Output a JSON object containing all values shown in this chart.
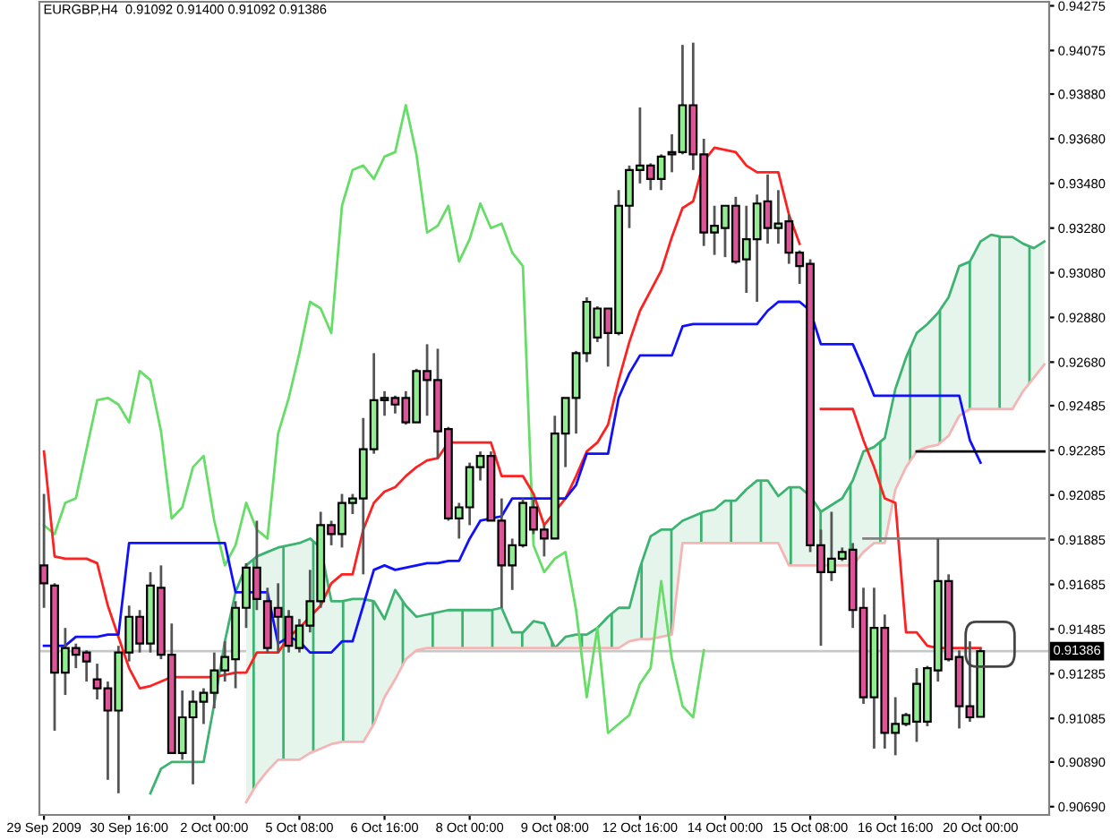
{
  "chart_data": {
    "type": "candlestick",
    "title": "EURGBP,H4  0.91092 0.91400 0.91092 0.91386",
    "categories": [
      "29 Sep 2009",
      null,
      null,
      null,
      null,
      null,
      null,
      null,
      "30 Sep 16:00",
      null,
      null,
      null,
      null,
      null,
      null,
      null,
      "2 Oct 00:00",
      null,
      null,
      null,
      null,
      null,
      null,
      null,
      "5 Oct 08:00",
      null,
      null,
      null,
      null,
      null,
      null,
      null,
      "6 Oct 16:00",
      null,
      null,
      null,
      null,
      null,
      null,
      null,
      "8 Oct 00:00",
      null,
      null,
      null,
      null,
      null,
      null,
      null,
      "9 Oct 08:00",
      null,
      null,
      null,
      null,
      null,
      null,
      null,
      "12 Oct 16:00",
      null,
      null,
      null,
      null,
      null,
      null,
      null,
      "14 Oct 00:00",
      null,
      null,
      null,
      null,
      null,
      null,
      null,
      "15 Oct 08:00",
      null,
      null,
      null,
      null,
      null,
      null,
      null,
      "16 Oct 16:00",
      null,
      null,
      null,
      null,
      null,
      null,
      null,
      "20 Oct 00:00",
      null,
      null,
      null,
      null,
      null,
      null
    ],
    "ohlc": [
      [
        0.9177,
        0.9209,
        0.9158,
        0.9169
      ],
      [
        0.9168,
        0.9169,
        0.9103,
        0.9129
      ],
      [
        0.9129,
        0.9149,
        0.9119,
        0.914
      ],
      [
        0.914,
        0.9142,
        0.9131,
        0.9137
      ],
      [
        0.9138,
        0.9139,
        0.9125,
        0.9134
      ],
      [
        0.9126,
        0.9133,
        0.9117,
        0.9122
      ],
      [
        0.9122,
        0.9125,
        0.9081,
        0.9112
      ],
      [
        0.9112,
        0.9141,
        0.9075,
        0.9138
      ],
      [
        0.9138,
        0.9159,
        0.9134,
        0.9154
      ],
      [
        0.9154,
        0.9157,
        0.9138,
        0.9142
      ],
      [
        0.9142,
        0.9174,
        0.9138,
        0.9168
      ],
      [
        0.9167,
        0.9177,
        0.9135,
        0.9137
      ],
      [
        0.9137,
        0.9151,
        0.9093,
        0.9093
      ],
      [
        0.9093,
        0.9121,
        0.909,
        0.9109
      ],
      [
        0.9109,
        0.9121,
        0.9079,
        0.9116
      ],
      [
        0.9116,
        0.9122,
        0.9106,
        0.912
      ],
      [
        0.912,
        0.9138,
        0.9113,
        0.913
      ],
      [
        0.913,
        0.9143,
        0.9125,
        0.9136
      ],
      [
        0.9135,
        0.9161,
        0.9122,
        0.9158
      ],
      [
        0.9158,
        0.9178,
        0.9149,
        0.9176
      ],
      [
        0.9176,
        0.9197,
        0.9157,
        0.9162
      ],
      [
        0.9161,
        0.9167,
        0.9138,
        0.914
      ],
      [
        0.9158,
        0.9169,
        0.9138,
        0.9154
      ],
      [
        0.9154,
        0.9157,
        0.9138,
        0.9141
      ],
      [
        0.914,
        0.9153,
        0.9138,
        0.915
      ],
      [
        0.915,
        0.9175,
        0.9147,
        0.9161
      ],
      [
        0.9161,
        0.9201,
        0.9158,
        0.9195
      ],
      [
        0.9195,
        0.9197,
        0.9186,
        0.9191
      ],
      [
        0.9191,
        0.9209,
        0.9185,
        0.9205
      ],
      [
        0.9205,
        0.9209,
        0.92,
        0.9207
      ],
      [
        0.9207,
        0.9243,
        0.9173,
        0.9229
      ],
      [
        0.9229,
        0.9272,
        0.9227,
        0.9251
      ],
      [
        0.9251,
        0.9255,
        0.9244,
        0.9252
      ],
      [
        0.9252,
        0.9253,
        0.9245,
        0.9249
      ],
      [
        0.9252,
        0.9255,
        0.924,
        0.9241
      ],
      [
        0.9241,
        0.9265,
        0.9241,
        0.9264
      ],
      [
        0.9264,
        0.9276,
        0.9244,
        0.926
      ],
      [
        0.926,
        0.9274,
        0.9225,
        0.9237
      ],
      [
        0.9238,
        0.9239,
        0.9197,
        0.9198
      ],
      [
        0.9198,
        0.9205,
        0.9189,
        0.9203
      ],
      [
        0.9203,
        0.9223,
        0.9195,
        0.9221
      ],
      [
        0.9221,
        0.9228,
        0.9215,
        0.9226
      ],
      [
        0.9226,
        0.9228,
        0.9197,
        0.9197
      ],
      [
        0.9197,
        0.9207,
        0.9158,
        0.9177
      ],
      [
        0.9177,
        0.9189,
        0.9166,
        0.9186
      ],
      [
        0.9186,
        0.9207,
        0.9185,
        0.9205
      ],
      [
        0.9203,
        0.9207,
        0.9191,
        0.9193
      ],
      [
        0.9193,
        0.9195,
        0.9181,
        0.9189
      ],
      [
        0.9189,
        0.9244,
        0.9189,
        0.9236
      ],
      [
        0.9236,
        0.9252,
        0.9221,
        0.9252
      ],
      [
        0.9252,
        0.9273,
        0.9236,
        0.9272
      ],
      [
        0.9272,
        0.9297,
        0.9268,
        0.9295
      ],
      [
        0.9279,
        0.9293,
        0.9277,
        0.9292
      ],
      [
        0.9292,
        0.9292,
        0.9266,
        0.9281
      ],
      [
        0.9281,
        0.9345,
        0.928,
        0.9338
      ],
      [
        0.9338,
        0.9356,
        0.9328,
        0.9354
      ],
      [
        0.9354,
        0.9382,
        0.9348,
        0.9356
      ],
      [
        0.9356,
        0.9357,
        0.9345,
        0.935
      ],
      [
        0.935,
        0.9361,
        0.9345,
        0.936
      ],
      [
        0.9361,
        0.937,
        0.9353,
        0.9362
      ],
      [
        0.9362,
        0.941,
        0.9361,
        0.9383
      ],
      [
        0.9383,
        0.9411,
        0.9354,
        0.9361
      ],
      [
        0.9361,
        0.9368,
        0.932,
        0.9326
      ],
      [
        0.9326,
        0.9338,
        0.9316,
        0.9329
      ],
      [
        0.9328,
        0.9338,
        0.9315,
        0.9338
      ],
      [
        0.9338,
        0.9342,
        0.9312,
        0.9313
      ],
      [
        0.9314,
        0.9338,
        0.9299,
        0.9323
      ],
      [
        0.9323,
        0.9343,
        0.9295,
        0.9339
      ],
      [
        0.934,
        0.9352,
        0.9321,
        0.9328
      ],
      [
        0.9328,
        0.9345,
        0.9321,
        0.933
      ],
      [
        0.9331,
        0.9334,
        0.9312,
        0.9317
      ],
      [
        0.9317,
        0.9318,
        0.9303,
        0.9311
      ],
      [
        0.9312,
        0.9314,
        0.9183,
        0.9186
      ],
      [
        0.9186,
        0.9193,
        0.9141,
        0.9174
      ],
      [
        0.9174,
        0.9201,
        0.917,
        0.918
      ],
      [
        0.918,
        0.9185,
        0.9179,
        0.9183
      ],
      [
        0.9184,
        0.9187,
        0.9149,
        0.9157
      ],
      [
        0.9158,
        0.9167,
        0.9115,
        0.9118
      ],
      [
        0.9118,
        0.9167,
        0.9095,
        0.9149
      ],
      [
        0.9149,
        0.9155,
        0.9095,
        0.9102
      ],
      [
        0.9102,
        0.9118,
        0.9092,
        0.9106
      ],
      [
        0.9106,
        0.9111,
        0.9105,
        0.911
      ],
      [
        0.9107,
        0.9131,
        0.9098,
        0.9124
      ],
      [
        0.9107,
        0.9132,
        0.9105,
        0.9131
      ],
      [
        0.913,
        0.9189,
        0.9125,
        0.917
      ],
      [
        0.917,
        0.9173,
        0.9134,
        0.9135
      ],
      [
        0.9136,
        0.9139,
        0.9104,
        0.9114
      ],
      [
        0.9114,
        0.9143,
        0.9107,
        0.9109
      ],
      [
        0.91092,
        0.914,
        0.91092,
        0.91386
      ],
      null,
      null,
      null,
      null,
      null,
      null
    ],
    "colors": [
      "#dd5599",
      "#dd5599",
      "#90ee90",
      "#dd5599",
      "#dd5599",
      "#dd5599",
      "#dd5599",
      "#90ee90",
      "#90ee90",
      "#dd5599",
      "#90ee90",
      "#dd5599",
      "#dd5599",
      "#90ee90",
      "#90ee90",
      "#90ee90",
      "#90ee90",
      "#90ee90",
      "#90ee90",
      "#90ee90",
      "#dd5599",
      "#dd5599",
      "#dd5599",
      "#dd5599",
      "#90ee90",
      "#90ee90",
      "#90ee90",
      "#dd5599",
      "#90ee90",
      "#90ee90",
      "#90ee90",
      "#90ee90",
      "#90ee90",
      "#dd5599",
      "#dd5599",
      "#90ee90",
      "#dd5599",
      "#dd5599",
      "#dd5599",
      "#90ee90",
      "#90ee90",
      "#90ee90",
      "#dd5599",
      "#dd5599",
      "#90ee90",
      "#90ee90",
      "#dd5599",
      "#dd5599",
      "#90ee90",
      "#90ee90",
      "#90ee90",
      "#90ee90",
      "#90ee90",
      "#dd5599",
      "#90ee90",
      "#90ee90",
      "#90ee90",
      "#dd5599",
      "#90ee90",
      "#90ee90",
      "#90ee90",
      "#dd5599",
      "#dd5599",
      "#90ee90",
      "#90ee90",
      "#dd5599",
      "#90ee90",
      "#90ee90",
      "#dd5599",
      "#90ee90",
      "#dd5599",
      "#dd5599",
      "#dd5599",
      "#dd5599",
      "#90ee90",
      "#90ee90",
      "#dd5599",
      "#dd5599",
      "#90ee90",
      "#dd5599",
      "#90ee90",
      "#90ee90",
      "#90ee90",
      "#90ee90",
      "#90ee90",
      "#dd5599",
      "#dd5599",
      "#dd5599",
      "#90ee90",
      null,
      null,
      null,
      null,
      null,
      null
    ],
    "series": [
      {
        "type": "line",
        "color": "#3cb371",
        "values": [
          null,
          null,
          null,
          null,
          null,
          null,
          null,
          null,
          null,
          null,
          0.9075,
          0.9086,
          0.9089,
          0.9089,
          0.9089,
          0.9089,
          0.9115,
          0.9143,
          0.9165,
          0.9177,
          0.9181,
          0.9183,
          0.9185,
          0.9186,
          0.9187,
          0.9189,
          0.9185,
          0.9161,
          0.9161,
          0.9162,
          0.9162,
          0.9161,
          0.9153,
          0.9166,
          0.9159,
          0.9154,
          0.9155,
          0.9156,
          0.9157,
          0.9157,
          0.9157,
          0.9157,
          0.9157,
          0.9158,
          0.9147,
          0.9147,
          0.9152,
          0.9151,
          0.914,
          0.9145,
          0.9146,
          0.9146,
          0.9149,
          0.9154,
          0.9158,
          0.9158,
          0.9176,
          0.919,
          0.9193,
          0.9193,
          0.9197,
          0.9199,
          0.9201,
          0.9202,
          0.9206,
          0.9206,
          0.9211,
          0.9215,
          0.9215,
          0.9208,
          0.9212,
          0.9212,
          0.9208,
          0.9201,
          0.9204,
          0.9207,
          0.9215,
          0.9228,
          0.923,
          0.9234,
          0.9256,
          0.927,
          0.9281,
          0.9285,
          0.929,
          0.9297,
          0.9311,
          0.9313,
          0.9322,
          0.9325,
          0.9324,
          0.9324,
          0.9321,
          0.9319,
          0.9322
        ],
        "upper": [
          null,
          null,
          null,
          null,
          null,
          null,
          null,
          null,
          null,
          null,
          null,
          null,
          null,
          null,
          null,
          null,
          null,
          null,
          null,
          0.9177,
          0.9181,
          0.9183,
          0.9185,
          0.9186,
          0.9187,
          0.9189,
          0.9185,
          0.9161,
          0.9161,
          0.9162,
          0.9162,
          0.9161,
          0.9153,
          0.9166,
          0.9159,
          0.9154,
          0.9155,
          0.9156,
          0.9157,
          0.9157,
          0.9157,
          0.9157,
          0.9157,
          0.9158,
          0.9147,
          0.9147,
          0.9152,
          0.9151,
          0.914,
          0.9145,
          0.9146,
          0.9146,
          0.9149,
          0.9154,
          0.9158,
          0.9158,
          0.9176,
          0.919,
          0.9193,
          0.9193,
          0.9197,
          0.9199,
          0.9201,
          0.9202,
          0.9206,
          0.9206,
          0.9211,
          0.9215,
          0.9215,
          0.9208,
          0.9212,
          0.9212,
          0.9208,
          0.9201,
          0.9204,
          0.9207,
          0.9215,
          0.9228,
          0.923,
          0.9234,
          0.9256,
          0.927,
          0.9281,
          0.9285,
          0.929,
          0.9297,
          0.9311,
          0.9313,
          0.9322,
          0.9325,
          0.9324,
          0.9324,
          0.9321,
          0.9319,
          0.9322
        ],
        "lower": [
          null,
          null,
          null,
          null,
          null,
          null,
          null,
          null,
          null,
          null,
          null,
          null,
          null,
          null,
          null,
          null,
          null,
          null,
          null,
          0.9071,
          0.9079,
          0.9085,
          0.909,
          0.909,
          0.909,
          0.9093,
          0.9095,
          0.9097,
          0.9098,
          0.9098,
          0.9098,
          0.9106,
          0.9118,
          0.9126,
          0.9135,
          0.9139,
          0.914,
          0.914,
          0.914,
          0.914,
          0.914,
          0.914,
          0.914,
          0.914,
          0.914,
          0.914,
          0.914,
          0.914,
          0.914,
          0.914,
          0.914,
          0.914,
          0.914,
          0.914,
          0.914,
          0.9143,
          0.9144,
          0.9144,
          0.9145,
          0.9146,
          0.9187,
          0.9187,
          0.9187,
          0.9187,
          0.9187,
          0.9187,
          0.9187,
          0.9187,
          0.9187,
          0.9187,
          0.9177,
          0.9177,
          0.9177,
          0.9177,
          0.9177,
          0.9177,
          0.9177,
          0.9183,
          0.9187,
          0.9187,
          0.9211,
          0.9221,
          0.9228,
          0.923,
          0.9231,
          0.9235,
          0.9244,
          0.9247,
          0.9247,
          0.9247,
          0.9247,
          0.9247,
          0.9255,
          0.9261,
          0.9267
        ]
      },
      {
        "type": "line",
        "color": "#f5b5b5",
        "values": [
          null,
          null,
          null,
          null,
          null,
          null,
          null,
          null,
          null,
          null,
          null,
          null,
          null,
          null,
          null,
          null,
          null,
          null,
          null,
          0.9071,
          0.9079,
          0.9085,
          0.909,
          0.909,
          0.909,
          0.9093,
          0.9095,
          0.9097,
          0.9098,
          0.9098,
          0.9098,
          0.9106,
          0.9118,
          0.9126,
          0.9135,
          0.9139,
          0.914,
          0.914,
          0.914,
          0.914,
          0.914,
          0.914,
          0.914,
          0.914,
          0.914,
          0.914,
          0.914,
          0.914,
          0.914,
          0.914,
          0.914,
          0.914,
          0.914,
          0.914,
          0.914,
          0.9143,
          0.9144,
          0.9144,
          0.9145,
          0.9146,
          0.9187,
          0.9187,
          0.9187,
          0.9187,
          0.9187,
          0.9187,
          0.9187,
          0.9187,
          0.9187,
          0.9187,
          0.9177,
          0.9177,
          0.9177,
          0.9177,
          0.9177,
          0.9177,
          0.9177,
          0.9183,
          0.9187,
          0.9187,
          0.9211,
          0.9221,
          0.9228,
          0.923,
          0.9231,
          0.9235,
          0.9244,
          0.9247,
          0.9247,
          0.9247,
          0.9247,
          0.9247,
          0.9255,
          0.9261,
          0.9267
        ]
      },
      {
        "type": "line",
        "color": "#66dd66",
        "values": [
          0.9195,
          0.9191,
          0.9205,
          0.9207,
          0.9229,
          0.9251,
          0.9252,
          0.9249,
          0.9241,
          0.9264,
          0.926,
          0.9237,
          0.9198,
          0.9203,
          0.9221,
          0.9226,
          0.9197,
          0.9177,
          0.9186,
          0.9205,
          0.9193,
          0.9189,
          0.9236,
          0.9252,
          0.9272,
          0.9295,
          0.9292,
          0.9281,
          0.9338,
          0.9354,
          0.9356,
          0.935,
          0.936,
          0.9362,
          0.9383,
          0.9361,
          0.9326,
          0.9329,
          0.9338,
          0.9313,
          0.9323,
          0.9339,
          0.9328,
          0.933,
          0.9317,
          0.9311,
          0.9186,
          0.9174,
          0.918,
          0.9183,
          0.9157,
          0.9118,
          0.9149,
          0.9102,
          0.9106,
          0.911,
          0.9124,
          0.9131,
          0.917,
          0.9135,
          0.9114,
          0.9109,
          0.9139,
          null,
          null,
          null,
          null,
          null,
          null,
          null,
          null,
          null,
          null,
          null,
          null,
          null,
          null,
          null,
          null,
          null,
          null,
          null,
          null,
          null,
          null,
          null,
          null,
          null,
          null,
          null,
          null,
          null,
          null,
          null,
          null
        ]
      },
      {
        "type": "line",
        "color": "#ff2020",
        "values": [
          0.9228,
          0.9181,
          0.918,
          0.918,
          0.918,
          0.9178,
          0.9159,
          0.9145,
          0.9131,
          0.9122,
          0.9123,
          0.9125,
          0.9127,
          0.9127,
          0.9127,
          0.9127,
          0.9127,
          0.9128,
          0.9129,
          0.9129,
          0.9138,
          0.9138,
          0.9138,
          0.9145,
          0.9149,
          0.9154,
          0.9159,
          0.9169,
          0.9173,
          0.9173,
          0.9193,
          0.9205,
          0.921,
          0.9212,
          0.9217,
          0.9221,
          0.9224,
          0.9225,
          0.9232,
          0.9232,
          0.9232,
          0.9232,
          0.9232,
          0.9217,
          0.9217,
          0.9217,
          0.9209,
          0.9195,
          0.9201,
          0.9207,
          0.9217,
          0.9228,
          0.9232,
          0.924,
          0.926,
          0.9277,
          0.9291,
          0.93,
          0.9309,
          0.9324,
          0.9337,
          0.934,
          0.9358,
          0.9364,
          0.9363,
          0.9362,
          0.9356,
          0.9353,
          0.9353,
          0.9353,
          0.9334,
          0.9321,
          null,
          0.9247,
          0.9247,
          0.9247,
          0.9247,
          0.9233,
          0.9221,
          0.9207,
          0.9205,
          0.9147,
          0.9147,
          0.9141,
          0.914,
          0.914,
          0.914,
          0.914,
          0.914,
          null,
          null,
          null,
          null,
          null,
          null
        ]
      },
      {
        "type": "line",
        "color": "#1010ff",
        "values": [
          0.9141,
          0.9141,
          0.9141,
          0.9145,
          0.9145,
          0.9145,
          0.9146,
          0.9146,
          0.9187,
          0.9187,
          0.9187,
          0.9187,
          0.9187,
          0.9187,
          0.9187,
          0.9187,
          0.9187,
          0.9187,
          0.9165,
          0.9165,
          0.9165,
          0.9165,
          0.9142,
          0.9145,
          0.9143,
          0.9138,
          0.9138,
          0.9138,
          0.9143,
          0.9143,
          0.9159,
          0.9175,
          0.9177,
          0.9175,
          0.9176,
          0.9177,
          0.9178,
          0.9178,
          0.9179,
          0.9179,
          0.9189,
          0.9197,
          0.9198,
          0.9199,
          0.9207,
          0.9207,
          0.9207,
          0.9207,
          0.9207,
          0.9207,
          0.9213,
          0.9227,
          0.9227,
          0.9227,
          0.9252,
          0.9263,
          0.9271,
          0.9271,
          0.9271,
          0.9271,
          0.9284,
          0.9285,
          0.9285,
          0.9285,
          0.9285,
          0.9285,
          0.9285,
          0.9285,
          0.9291,
          0.9295,
          0.9295,
          0.9295,
          0.9291,
          0.9276,
          0.9276,
          0.9276,
          0.9276,
          0.9265,
          0.9253,
          0.9253,
          0.9253,
          0.9253,
          0.9253,
          0.9253,
          0.9253,
          0.9253,
          0.9253,
          0.9233,
          0.9223,
          null,
          null,
          null,
          null,
          null,
          null
        ]
      },
      {
        "type": "line",
        "color": "#000000",
        "values": [
          null,
          null,
          null,
          null,
          null,
          null,
          null,
          null,
          null,
          null,
          null,
          null,
          null,
          null,
          null,
          null,
          null,
          null,
          null,
          null,
          null,
          null,
          null,
          null,
          null,
          null,
          null,
          null,
          null,
          null,
          null,
          null,
          null,
          null,
          null,
          null,
          null,
          null,
          null,
          null,
          null,
          null,
          null,
          null,
          null,
          null,
          null,
          null,
          null,
          null,
          null,
          null,
          null,
          null,
          null,
          null,
          null,
          null,
          null,
          null,
          null,
          null,
          null,
          null,
          null,
          null,
          null,
          null,
          null,
          null,
          null,
          null,
          null,
          null,
          null,
          null,
          null,
          null,
          null,
          null,
          null,
          null,
          0.9228,
          0.9228,
          0.9228,
          0.9228,
          0.9228,
          0.9228,
          0.9228,
          0.9228,
          0.9228,
          0.9228,
          0.9228,
          0.9228,
          0.9228
        ]
      },
      {
        "type": "line",
        "color": "#808080",
        "values": [
          null,
          null,
          null,
          null,
          null,
          null,
          null,
          null,
          null,
          null,
          null,
          null,
          null,
          null,
          null,
          null,
          null,
          null,
          null,
          null,
          null,
          null,
          null,
          null,
          null,
          null,
          null,
          null,
          null,
          null,
          null,
          null,
          null,
          null,
          null,
          null,
          null,
          null,
          null,
          null,
          null,
          null,
          null,
          null,
          null,
          null,
          null,
          null,
          null,
          null,
          null,
          null,
          null,
          null,
          null,
          null,
          null,
          null,
          null,
          null,
          null,
          null,
          null,
          null,
          null,
          null,
          null,
          null,
          null,
          null,
          null,
          null,
          null,
          null,
          null,
          null,
          null,
          0.9189,
          0.9189,
          0.9189,
          0.9189,
          0.9189,
          0.9189,
          0.9189,
          0.9189,
          0.9189,
          0.9189,
          0.9189,
          0.9189,
          0.9189,
          0.9189,
          0.9189,
          0.9189,
          0.9189,
          0.9189
        ]
      }
    ],
    "ref_lines": [
      {
        "axis": "y",
        "value": 0.91386,
        "label": "0.91386",
        "color": "#c8c8c8"
      }
    ],
    "ylim": [
      0.90653,
      0.94293
    ],
    "yticks": [
      {
        "value": 0.9069,
        "label": "0.90690"
      },
      {
        "value": 0.9089,
        "label": "0.90890"
      },
      {
        "value": 0.91085,
        "label": "0.91085"
      },
      {
        "value": 0.91285,
        "label": "0.91285"
      },
      {
        "value": 0.91485,
        "label": "0.91485"
      },
      {
        "value": 0.91685,
        "label": "0.91685"
      },
      {
        "value": 0.91885,
        "label": "0.91885"
      },
      {
        "value": 0.92085,
        "label": "0.92085"
      },
      {
        "value": 0.92285,
        "label": "0.92285"
      },
      {
        "value": 0.92485,
        "label": "0.92485"
      },
      {
        "value": 0.9268,
        "label": "0.92680"
      },
      {
        "value": 0.9288,
        "label": "0.92880"
      },
      {
        "value": 0.9308,
        "label": "0.93080"
      },
      {
        "value": 0.9328,
        "label": "0.93280"
      },
      {
        "value": 0.9348,
        "label": "0.93480"
      },
      {
        "value": 0.9368,
        "label": "0.93680"
      },
      {
        "value": 0.9388,
        "label": "0.93880"
      },
      {
        "value": 0.94075,
        "label": "0.94075"
      },
      {
        "value": 0.94275,
        "label": "0.94275"
      }
    ],
    "grid": false,
    "legend": false
  }
}
